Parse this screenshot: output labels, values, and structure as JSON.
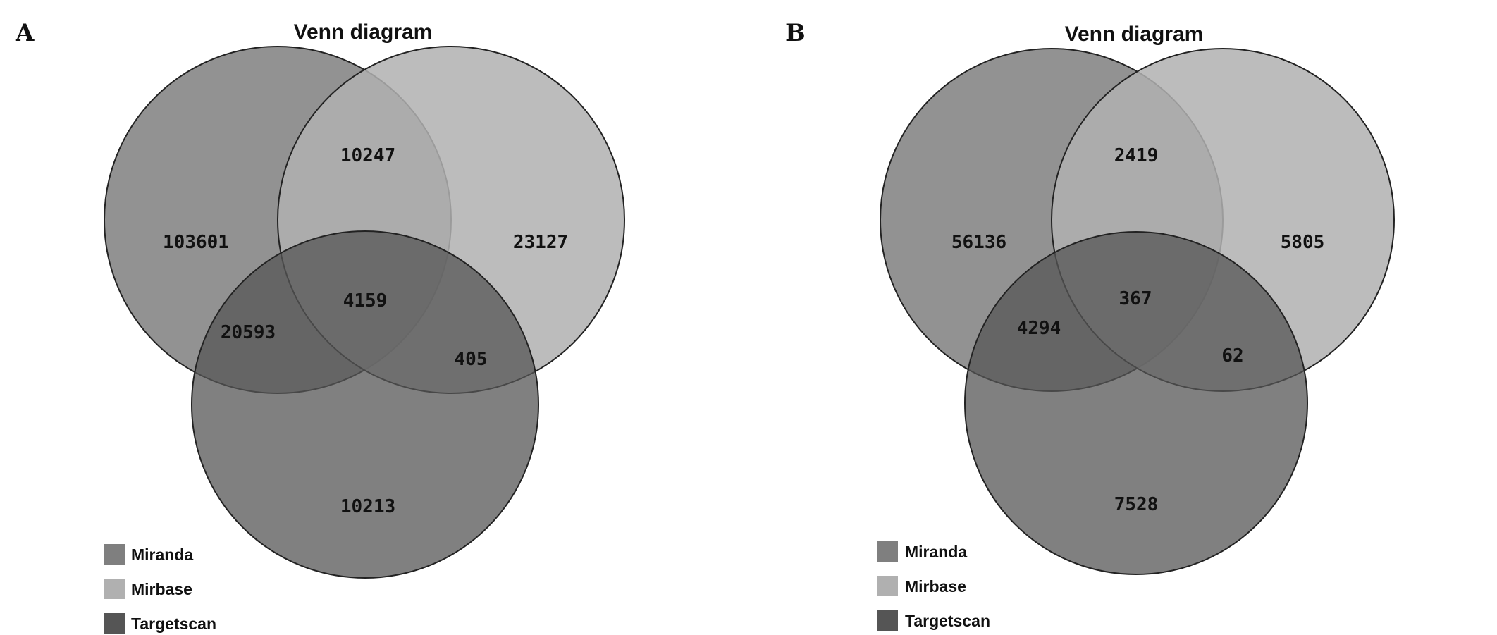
{
  "panels": [
    {
      "label": "A",
      "title": "Venn diagram",
      "sets": [
        {
          "name": "Miranda",
          "color": "#7f7f7f",
          "opacity": 0.85
        },
        {
          "name": "Mirbase",
          "color": "#b0b0b0",
          "opacity": 0.85
        },
        {
          "name": "Targetscan",
          "color": "#555555",
          "opacity": 0.75
        }
      ],
      "regions": {
        "miranda_only": "103601",
        "mirbase_only": "23127",
        "targetscan_only": "10213",
        "miranda_mirbase": "10247",
        "miranda_targetscan": "20593",
        "mirbase_targetscan": "405",
        "all_three": "4159"
      }
    },
    {
      "label": "B",
      "title": "Venn diagram",
      "sets": [
        {
          "name": "Miranda",
          "color": "#7f7f7f",
          "opacity": 0.85
        },
        {
          "name": "Mirbase",
          "color": "#b0b0b0",
          "opacity": 0.85
        },
        {
          "name": "Targetscan",
          "color": "#555555",
          "opacity": 0.75
        }
      ],
      "regions": {
        "miranda_only": "56136",
        "mirbase_only": "5805",
        "targetscan_only": "7528",
        "miranda_mirbase": "2419",
        "miranda_targetscan": "4294",
        "mirbase_targetscan": "62",
        "all_three": "367"
      }
    }
  ]
}
